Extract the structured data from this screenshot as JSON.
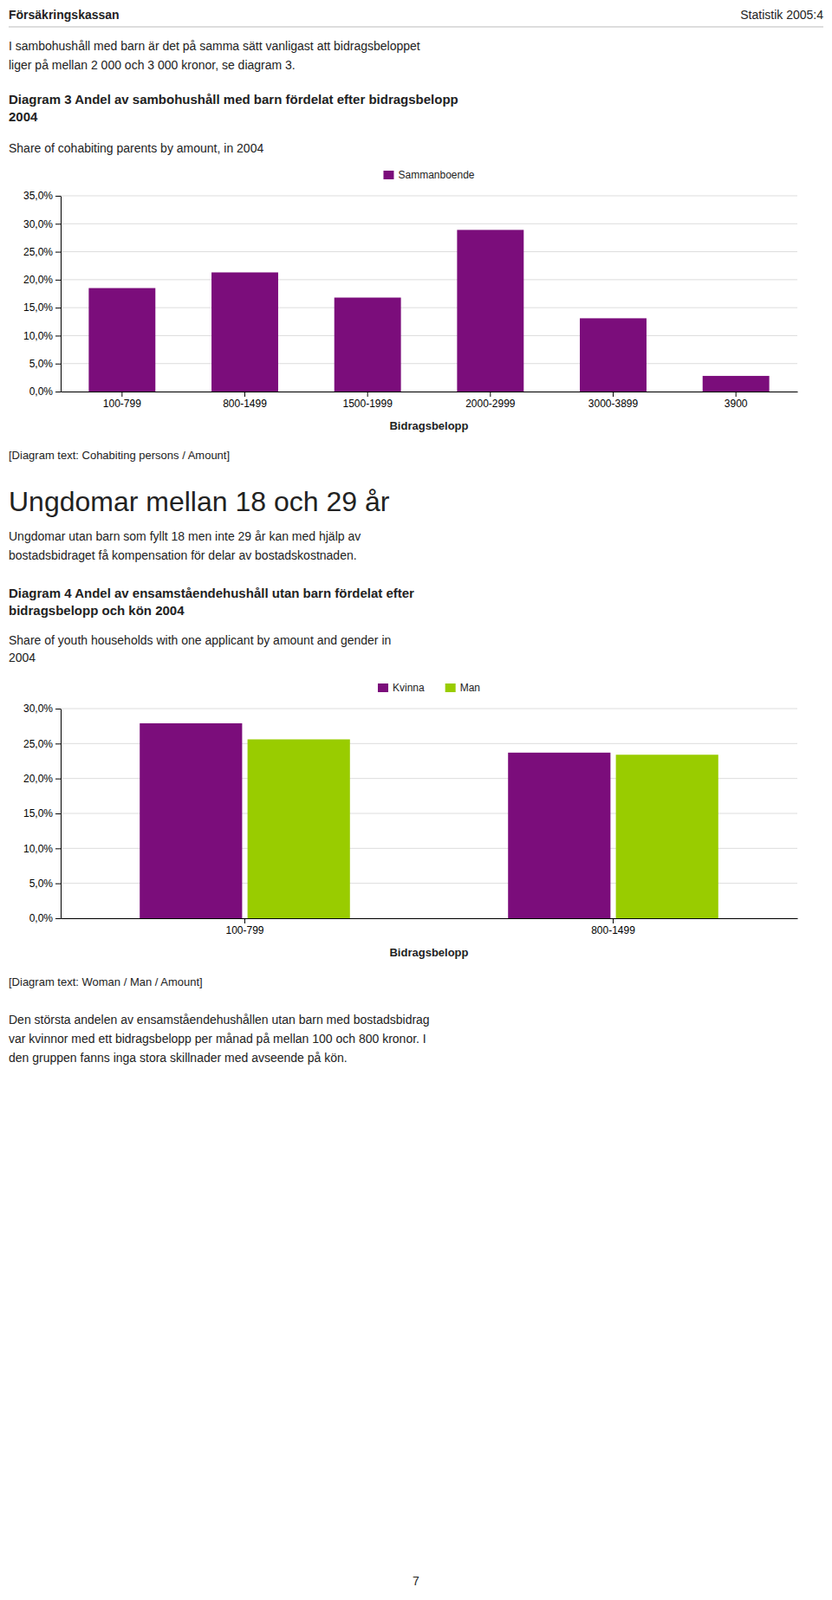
{
  "header_left": "Försäkringskassan",
  "header_right": "Statistik 2005:4",
  "intro_text": "I sambohushåll med barn är det på samma sätt vanligast att bidragsbeloppet\nliger på mellan 2 000 och 3 000 kronor, se diagram 3.",
  "section_title": "Ungdomar mellan 18 och 29 år",
  "section_text": "Ungdomar utan barn som fyllt 18 men inte 29 år kan med hjälp av\nbostadsbidraget få kompensation för delar av bostadskostnaden.",
  "footer_text": "Den största andelen av ensamståendehushållen utan barn med bostadsbidrag\nvar kvinnor med ett bidragsbelopp per månad på mellan 100 och 800 kronor. I\nden gruppen fanns inga stora skillnader med avseende på kön.",
  "page_number": "7",
  "chart_data": [
    {
      "type": "bar",
      "title": "Diagram 3 Andel av sambohushåll med barn fördelat efter bidragsbelopp\n2004",
      "subtitle": "Share of cohabiting parents by amount, in 2004",
      "x_label": "Bidragsbelopp",
      "annotation": "[Diagram text: Cohabiting persons / Amount]",
      "categories": [
        "100-799",
        "800-1499",
        "1500-1999",
        "2000-2999",
        "3000-3899",
        "3900"
      ],
      "series": [
        {
          "name": "Sammanboende",
          "color": "#7b0d7b",
          "values": [
            0.185,
            0.213,
            0.168,
            0.289,
            0.131,
            0.028
          ]
        }
      ],
      "ylim": [
        0,
        0.35
      ],
      "yticks": [
        {
          "value": 0.0,
          "label": "0,0%"
        },
        {
          "value": 0.05,
          "label": "5,0%"
        },
        {
          "value": 0.1,
          "label": "10,0%"
        },
        {
          "value": 0.15,
          "label": "15,0%"
        },
        {
          "value": 0.2,
          "label": "20,0%"
        },
        {
          "value": 0.25,
          "label": "25,0%"
        },
        {
          "value": 0.3,
          "label": "30,0%"
        },
        {
          "value": 0.35,
          "label": "35,0%"
        }
      ],
      "grid": true,
      "legend": "top"
    },
    {
      "type": "bar",
      "title": "Diagram 4 Andel av ensamståendehushåll utan barn fördelat efter\nbidragsbelopp och kön 2004",
      "subtitle": "Share of youth households with one applicant by amount and gender in\n2004",
      "x_label": "Bidragsbelopp",
      "annotation": "[Diagram text: Woman / Man / Amount]",
      "categories": [
        "100-799",
        "800-1499"
      ],
      "series": [
        {
          "name": "Kvinna",
          "color": "#7b0d7b",
          "values": [
            0.279,
            0.237
          ]
        },
        {
          "name": "Man",
          "color": "#99cc00",
          "values": [
            0.256,
            0.234
          ]
        }
      ],
      "ylim": [
        0,
        0.3
      ],
      "yticks": [
        {
          "value": 0.0,
          "label": "0,0%"
        },
        {
          "value": 0.05,
          "label": "5,0%"
        },
        {
          "value": 0.1,
          "label": "10,0%"
        },
        {
          "value": 0.15,
          "label": "15,0%"
        },
        {
          "value": 0.2,
          "label": "20,0%"
        },
        {
          "value": 0.25,
          "label": "25,0%"
        },
        {
          "value": 0.3,
          "label": "30,0%"
        }
      ],
      "grid": true,
      "legend": "top"
    }
  ]
}
